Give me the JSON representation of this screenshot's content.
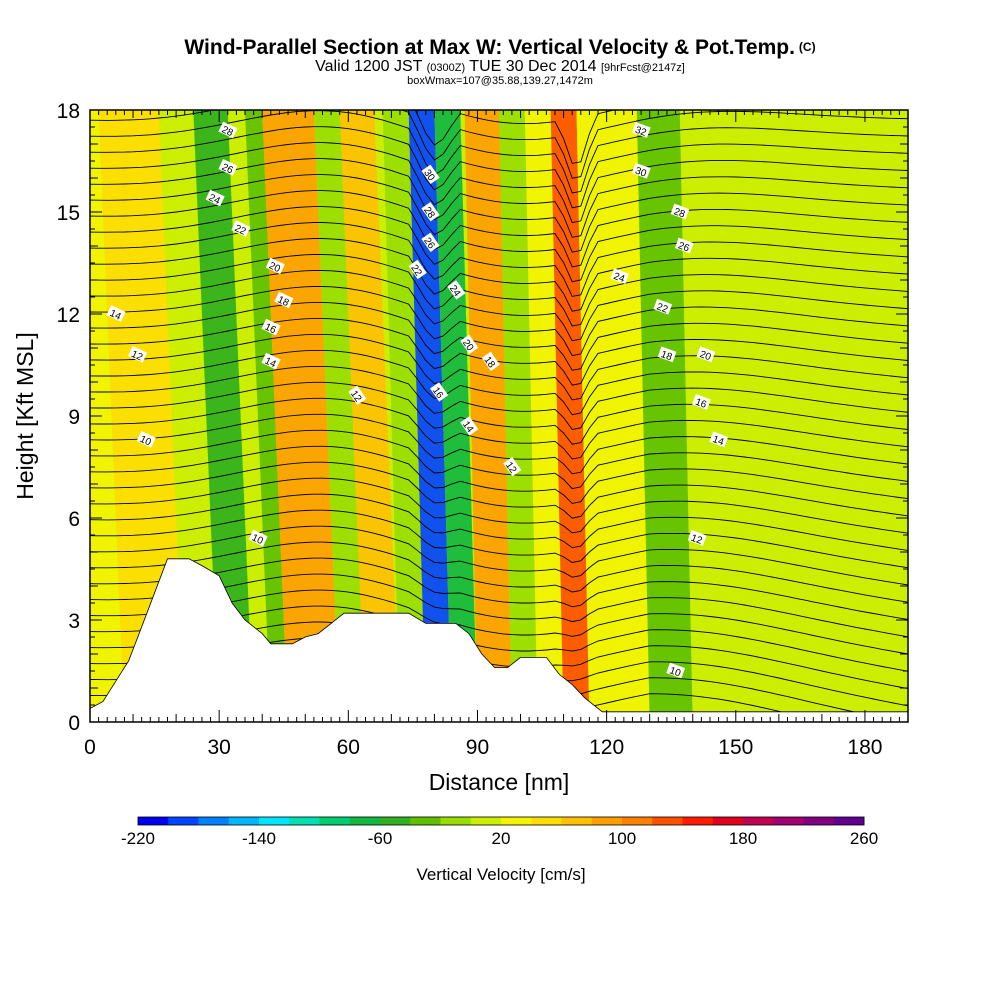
{
  "title": {
    "line1": "Wind-Parallel Section at Max W: Vertical Velocity & Pot.Temp.",
    "copyright": "(C)",
    "line2_a": "Valid 1200 JST",
    "line2_b": "(0300Z)",
    "line2_c": "TUE 30 Dec 2014",
    "line2_d": "[9hrFcst@2147z]",
    "line3": "boxWmax=107@35.88,139.27,1472m"
  },
  "chart_data": {
    "type": "heatmap",
    "xlabel": "Distance [nm]",
    "ylabel": "Height [Kft MSL]",
    "xlim": [
      0,
      190
    ],
    "ylim": [
      0,
      18
    ],
    "xticks": [
      "0",
      "30",
      "60",
      "90",
      "120",
      "150",
      "180"
    ],
    "yticks": [
      "0",
      "3",
      "6",
      "9",
      "12",
      "15",
      "18"
    ],
    "colorbar": {
      "title": "Vertical Velocity [cm/s]",
      "range": [
        -220,
        260
      ],
      "labels": [
        "-220",
        "-140",
        "-60",
        "20",
        "100",
        "180",
        "260"
      ],
      "colors": [
        "#0000ee",
        "#0044ff",
        "#0080ff",
        "#00b6ff",
        "#00e5ff",
        "#00e0b0",
        "#00cc70",
        "#10b840",
        "#30b020",
        "#60c000",
        "#99dd00",
        "#ccee00",
        "#f4f400",
        "#ffdd00",
        "#ffc000",
        "#ffa000",
        "#ff8000",
        "#ff5000",
        "#ff1a00",
        "#e00020",
        "#c00050",
        "#a00070",
        "#800080",
        "#600090"
      ]
    },
    "vertical_velocity_bands": [
      {
        "x0": 0,
        "x1": 8,
        "w": 20
      },
      {
        "x0": 8,
        "x1": 22,
        "w": 50
      },
      {
        "x0": 22,
        "x1": 30,
        "w": 10
      },
      {
        "x0": 30,
        "x1": 38,
        "w": -60
      },
      {
        "x0": 38,
        "x1": 42,
        "w": 0
      },
      {
        "x0": 42,
        "x1": 46,
        "w": -40
      },
      {
        "x0": 46,
        "x1": 58,
        "w": 90
      },
      {
        "x0": 58,
        "x1": 64,
        "w": -20
      },
      {
        "x0": 64,
        "x1": 72,
        "w": 60
      },
      {
        "x0": 72,
        "x1": 78,
        "w": -20
      },
      {
        "x0": 78,
        "x1": 84,
        "w": -200
      },
      {
        "x0": 84,
        "x1": 90,
        "w": -80
      },
      {
        "x0": 90,
        "x1": 98,
        "w": 80
      },
      {
        "x0": 98,
        "x1": 104,
        "w": -20
      },
      {
        "x0": 104,
        "x1": 110,
        "w": 30
      },
      {
        "x0": 110,
        "x1": 116,
        "w": 120
      },
      {
        "x0": 116,
        "x1": 130,
        "w": 20
      },
      {
        "x0": 130,
        "x1": 140,
        "w": -30
      },
      {
        "x0": 140,
        "x1": 190,
        "w": 0
      }
    ],
    "potential_temperature_labels": [
      {
        "x": 32,
        "y": 17.4,
        "text": "28"
      },
      {
        "x": 32,
        "y": 16.3,
        "text": "26"
      },
      {
        "x": 29,
        "y": 15.4,
        "text": "24"
      },
      {
        "x": 35,
        "y": 14.5,
        "text": "22"
      },
      {
        "x": 43,
        "y": 13.4,
        "text": "20"
      },
      {
        "x": 45,
        "y": 12.4,
        "text": "18"
      },
      {
        "x": 42,
        "y": 11.6,
        "text": "16"
      },
      {
        "x": 42,
        "y": 10.6,
        "text": "14"
      },
      {
        "x": 6,
        "y": 12.0,
        "text": "14"
      },
      {
        "x": 11,
        "y": 10.8,
        "text": "12"
      },
      {
        "x": 13,
        "y": 8.3,
        "text": "10"
      },
      {
        "x": 62,
        "y": 9.6,
        "text": "12"
      },
      {
        "x": 39,
        "y": 5.4,
        "text": "10"
      },
      {
        "x": 79,
        "y": 16.1,
        "text": "30"
      },
      {
        "x": 79,
        "y": 15.0,
        "text": "28"
      },
      {
        "x": 79,
        "y": 14.1,
        "text": "26"
      },
      {
        "x": 76,
        "y": 13.3,
        "text": "22"
      },
      {
        "x": 85,
        "y": 12.7,
        "text": "24"
      },
      {
        "x": 88,
        "y": 11.1,
        "text": "20"
      },
      {
        "x": 93,
        "y": 10.6,
        "text": "18"
      },
      {
        "x": 81,
        "y": 9.7,
        "text": "16"
      },
      {
        "x": 88,
        "y": 8.7,
        "text": "14"
      },
      {
        "x": 98,
        "y": 7.5,
        "text": "12"
      },
      {
        "x": 128,
        "y": 17.4,
        "text": "32"
      },
      {
        "x": 128,
        "y": 16.2,
        "text": "30"
      },
      {
        "x": 137,
        "y": 15.0,
        "text": "28"
      },
      {
        "x": 138,
        "y": 14.0,
        "text": "26"
      },
      {
        "x": 123,
        "y": 13.1,
        "text": "24"
      },
      {
        "x": 133,
        "y": 12.2,
        "text": "22"
      },
      {
        "x": 134,
        "y": 10.8,
        "text": "18"
      },
      {
        "x": 143,
        "y": 10.8,
        "text": "20"
      },
      {
        "x": 142,
        "y": 9.4,
        "text": "16"
      },
      {
        "x": 146,
        "y": 8.3,
        "text": "14"
      },
      {
        "x": 141,
        "y": 5.4,
        "text": "12"
      },
      {
        "x": 136,
        "y": 1.5,
        "text": "10"
      }
    ],
    "terrain_profile": [
      [
        0,
        0.4
      ],
      [
        3,
        0.6
      ],
      [
        6,
        1.2
      ],
      [
        9,
        1.8
      ],
      [
        12,
        2.8
      ],
      [
        15,
        3.8
      ],
      [
        18,
        4.8
      ],
      [
        23,
        4.8
      ],
      [
        26,
        4.6
      ],
      [
        30,
        4.3
      ],
      [
        33,
        3.5
      ],
      [
        36,
        3.0
      ],
      [
        40,
        2.6
      ],
      [
        42,
        2.3
      ],
      [
        47,
        2.3
      ],
      [
        50,
        2.5
      ],
      [
        53,
        2.6
      ],
      [
        56,
        2.9
      ],
      [
        59,
        3.2
      ],
      [
        65,
        3.2
      ],
      [
        70,
        3.2
      ],
      [
        74,
        3.2
      ],
      [
        78,
        2.9
      ],
      [
        85,
        2.9
      ],
      [
        88,
        2.6
      ],
      [
        91,
        2.0
      ],
      [
        94,
        1.6
      ],
      [
        97,
        1.6
      ],
      [
        100,
        1.9
      ],
      [
        106,
        1.9
      ],
      [
        109,
        1.4
      ],
      [
        112,
        1.1
      ],
      [
        115,
        0.7
      ],
      [
        119,
        0.3
      ],
      [
        190,
        0.3
      ]
    ]
  }
}
